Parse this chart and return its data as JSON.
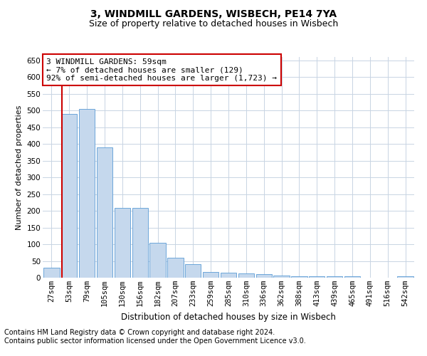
{
  "title1": "3, WINDMILL GARDENS, WISBECH, PE14 7YA",
  "title2": "Size of property relative to detached houses in Wisbech",
  "xlabel": "Distribution of detached houses by size in Wisbech",
  "ylabel": "Number of detached properties",
  "categories": [
    "27sqm",
    "53sqm",
    "79sqm",
    "105sqm",
    "130sqm",
    "156sqm",
    "182sqm",
    "207sqm",
    "233sqm",
    "259sqm",
    "285sqm",
    "310sqm",
    "336sqm",
    "362sqm",
    "388sqm",
    "413sqm",
    "439sqm",
    "465sqm",
    "491sqm",
    "516sqm",
    "542sqm"
  ],
  "values": [
    30,
    490,
    505,
    390,
    208,
    208,
    105,
    60,
    40,
    18,
    15,
    12,
    10,
    7,
    5,
    5,
    4,
    4,
    1,
    1,
    4
  ],
  "bar_color": "#c5d8ed",
  "bar_edge_color": "#5b9bd5",
  "red_line_x": 0.57,
  "annotation_text": "3 WINDMILL GARDENS: 59sqm\n← 7% of detached houses are smaller (129)\n92% of semi-detached houses are larger (1,723) →",
  "annotation_box_color": "#ffffff",
  "annotation_box_edge_color": "#cc0000",
  "footnote1": "Contains HM Land Registry data © Crown copyright and database right 2024.",
  "footnote2": "Contains public sector information licensed under the Open Government Licence v3.0.",
  "ylim": [
    0,
    660
  ],
  "yticks": [
    0,
    50,
    100,
    150,
    200,
    250,
    300,
    350,
    400,
    450,
    500,
    550,
    600,
    650
  ],
  "background_color": "#ffffff",
  "grid_color": "#c8d4e3",
  "title1_fontsize": 10,
  "title2_fontsize": 9,
  "xlabel_fontsize": 8.5,
  "ylabel_fontsize": 8,
  "tick_fontsize": 7.5,
  "annotation_fontsize": 8,
  "footnote_fontsize": 7
}
